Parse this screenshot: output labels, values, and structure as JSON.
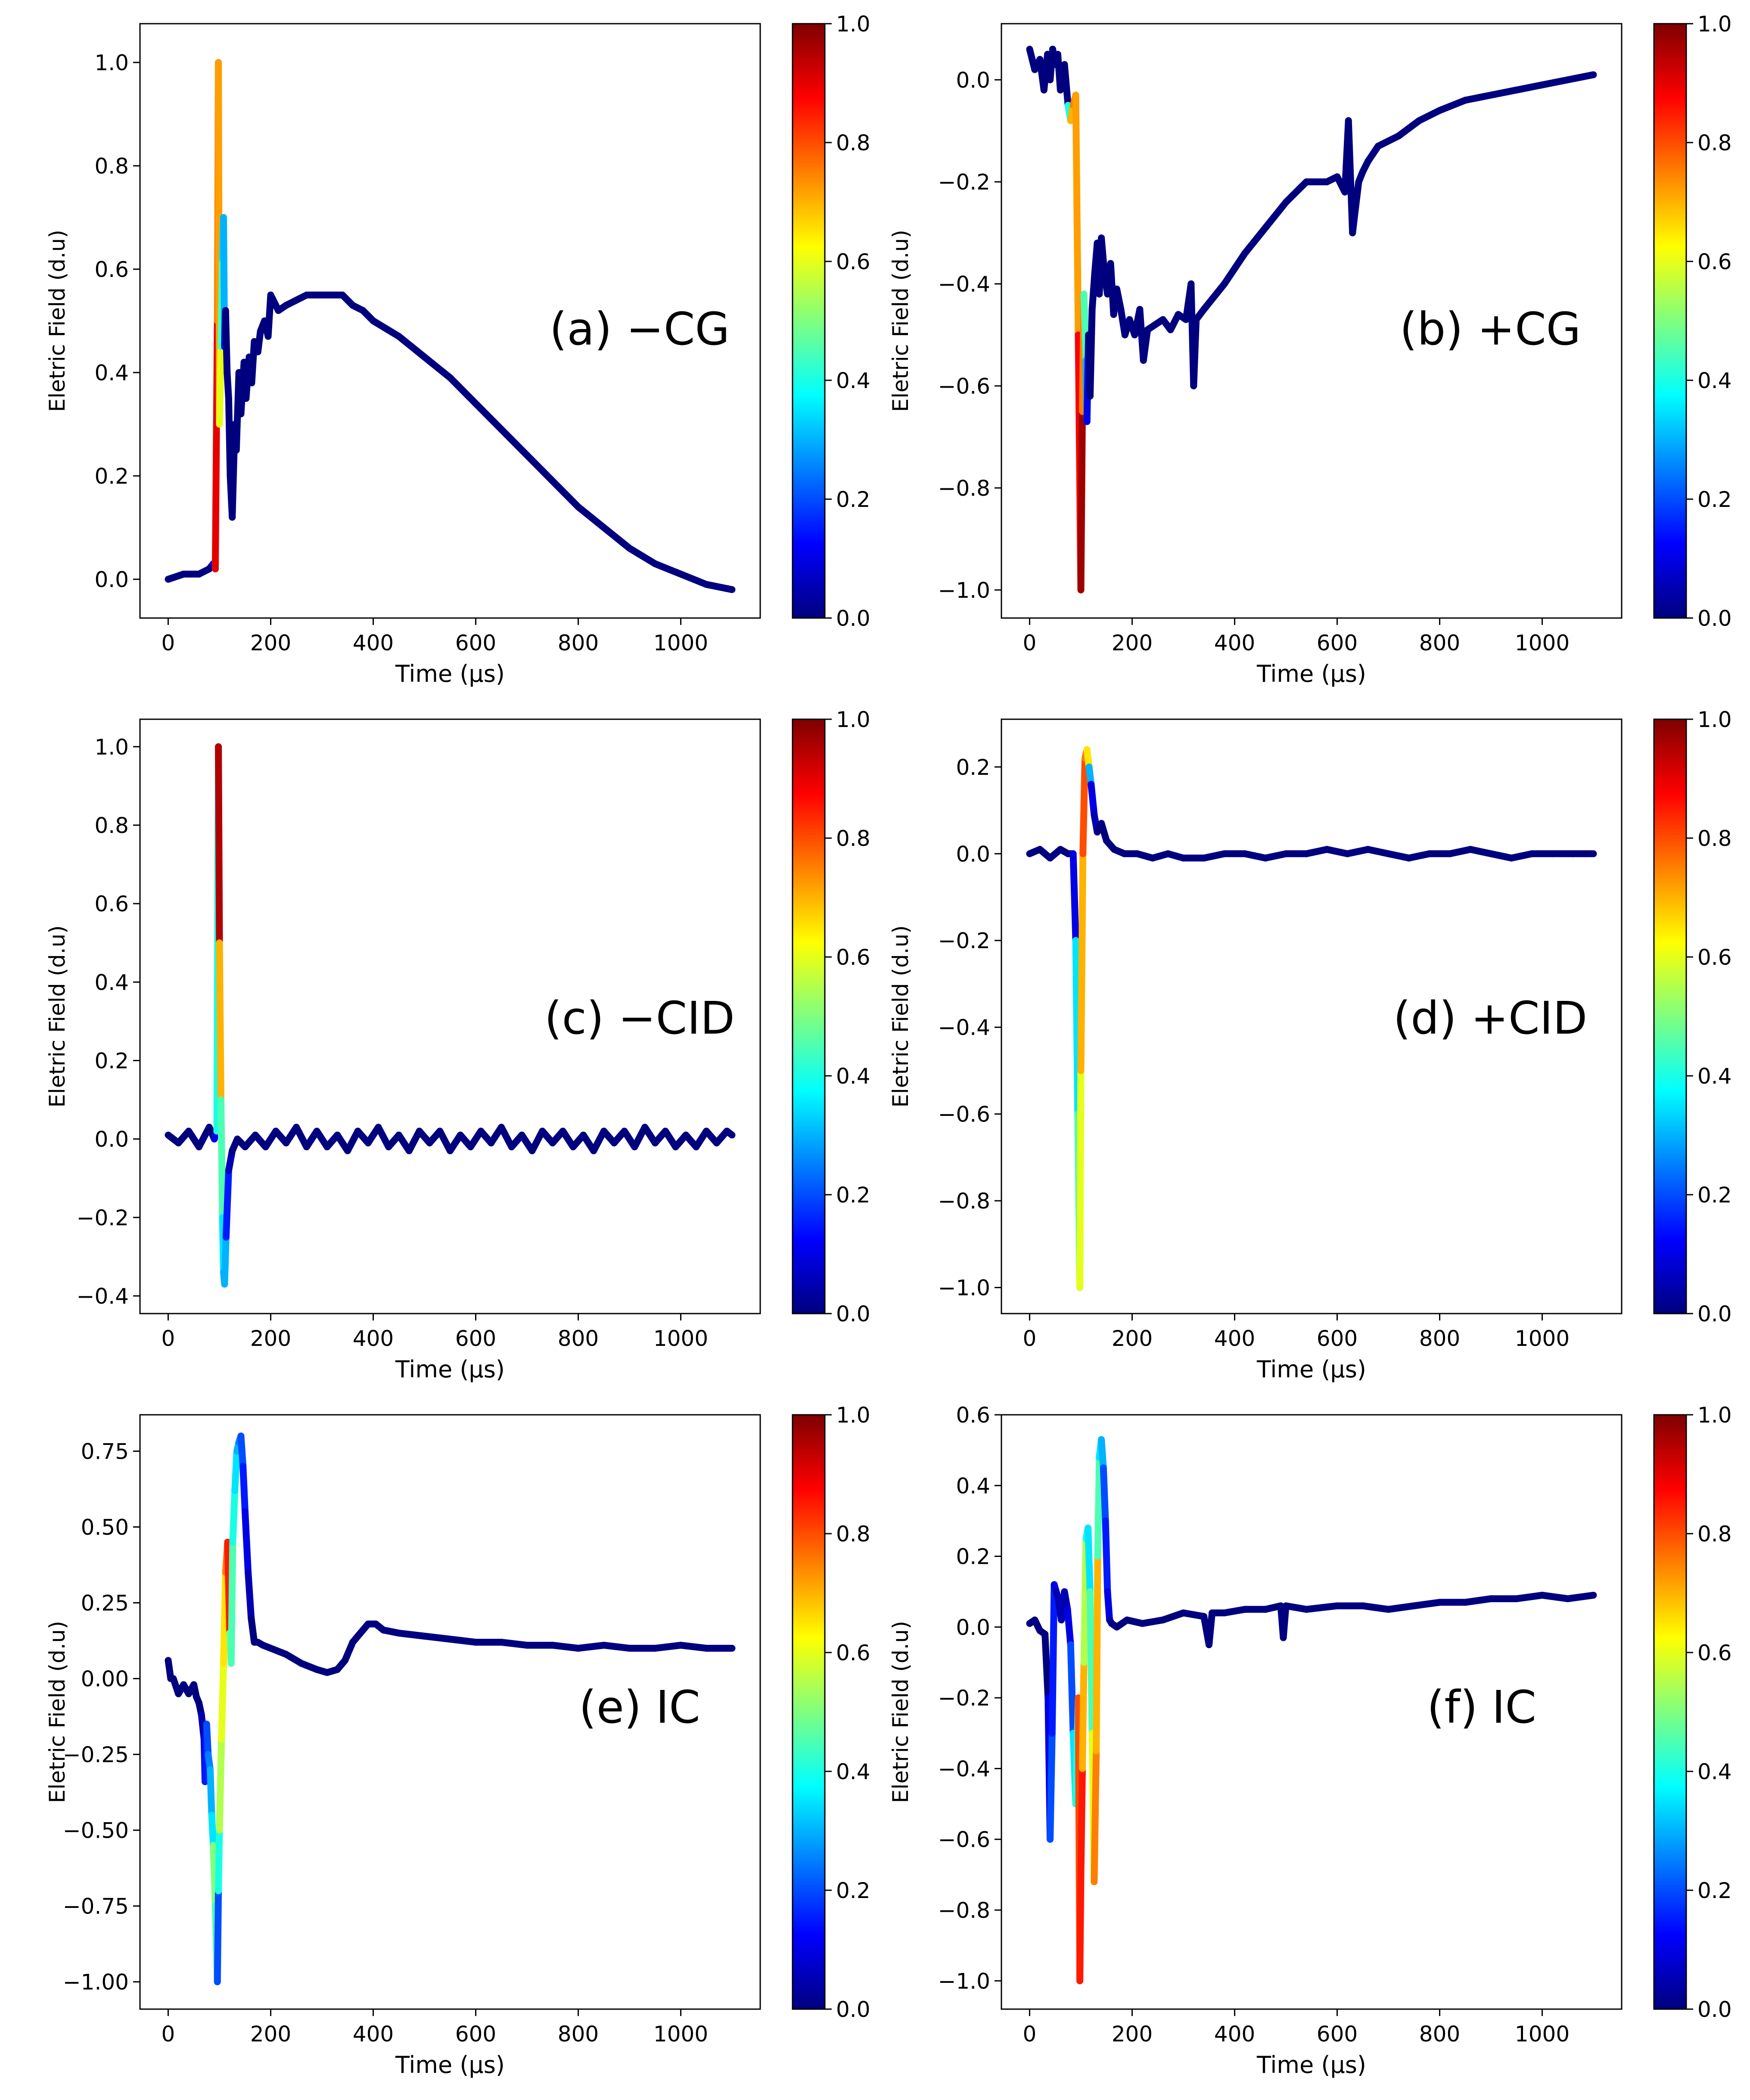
{
  "figure": {
    "colorbar_ticks": [
      "0.0",
      "0.2",
      "0.4",
      "0.6",
      "0.8",
      "1.0"
    ],
    "colormap": [
      "#00007f",
      "#0000ff",
      "#007fff",
      "#00ffff",
      "#7fff7f",
      "#ffff00",
      "#ff7f00",
      "#ff0000",
      "#7f0000"
    ]
  },
  "chart_data": [
    {
      "type": "line",
      "label": "(a) −CG",
      "xlabel": "Time (μs)",
      "ylabel": "Eletric Field (d.u)",
      "xlim": [
        -55,
        1155
      ],
      "ylim": [
        -0.075,
        1.075
      ],
      "xticks": [
        0,
        200,
        400,
        600,
        800,
        1000
      ],
      "yticks": [
        0.0,
        0.2,
        0.4,
        0.6,
        0.8,
        1.0
      ],
      "yticklabels": [
        "0.0",
        "0.2",
        "0.4",
        "0.6",
        "0.8",
        "1.0"
      ],
      "x": [
        0,
        30,
        60,
        80,
        88,
        92,
        96,
        98,
        100,
        103,
        106,
        108,
        110,
        112,
        115,
        118,
        121,
        125,
        130,
        133,
        138,
        142,
        148,
        152,
        158,
        163,
        168,
        175,
        180,
        188,
        195,
        200,
        215,
        230,
        250,
        270,
        300,
        320,
        340,
        360,
        380,
        400,
        450,
        500,
        550,
        600,
        650,
        700,
        750,
        800,
        850,
        900,
        950,
        1000,
        1050,
        1100
      ],
      "y": [
        0.0,
        0.01,
        0.01,
        0.02,
        0.03,
        0.02,
        0.5,
        1.0,
        0.3,
        0.45,
        0.62,
        0.7,
        0.45,
        0.52,
        0.4,
        0.35,
        0.2,
        0.12,
        0.3,
        0.25,
        0.4,
        0.32,
        0.42,
        0.35,
        0.43,
        0.38,
        0.46,
        0.44,
        0.48,
        0.5,
        0.47,
        0.55,
        0.52,
        0.53,
        0.54,
        0.55,
        0.55,
        0.55,
        0.55,
        0.53,
        0.52,
        0.5,
        0.47,
        0.43,
        0.39,
        0.34,
        0.29,
        0.24,
        0.19,
        0.14,
        0.1,
        0.06,
        0.03,
        0.01,
        -0.01,
        -0.02
      ],
      "c": [
        0,
        0,
        0,
        0,
        0.1,
        0.9,
        0.75,
        0.72,
        0.6,
        0.45,
        0.35,
        0.3,
        0.1,
        0,
        0,
        0,
        0,
        0,
        0,
        0,
        0,
        0,
        0,
        0,
        0,
        0,
        0,
        0,
        0,
        0,
        0,
        0,
        0,
        0,
        0,
        0,
        0,
        0,
        0,
        0,
        0,
        0,
        0,
        0,
        0,
        0,
        0,
        0,
        0,
        0,
        0,
        0,
        0,
        0,
        0,
        0
      ]
    },
    {
      "type": "line",
      "label": "(b) +CG",
      "xlabel": "Time (μs)",
      "ylabel": "Eletric Field (d.u)",
      "xlim": [
        -55,
        1155
      ],
      "ylim": [
        -1.055,
        0.11
      ],
      "xticks": [
        0,
        200,
        400,
        600,
        800,
        1000
      ],
      "yticks": [
        -1.0,
        -0.8,
        -0.6,
        -0.4,
        -0.2,
        0.0
      ],
      "yticklabels": [
        "−1.0",
        "−0.8",
        "−0.6",
        "−0.4",
        "−0.2",
        "0.0"
      ],
      "x": [
        0,
        10,
        20,
        28,
        35,
        40,
        45,
        50,
        55,
        60,
        68,
        75,
        80,
        85,
        90,
        95,
        100,
        103,
        106,
        110,
        112,
        115,
        118,
        122,
        127,
        132,
        136,
        140,
        146,
        152,
        158,
        164,
        170,
        178,
        186,
        195,
        205,
        215,
        222,
        230,
        245,
        260,
        275,
        290,
        305,
        315,
        320,
        325,
        340,
        380,
        420,
        460,
        500,
        540,
        580,
        600,
        615,
        622,
        630,
        636,
        642,
        650,
        660,
        680,
        720,
        760,
        800,
        850,
        900,
        950,
        1000,
        1050,
        1100
      ],
      "y": [
        0.06,
        0.02,
        0.04,
        -0.02,
        0.05,
        0.0,
        0.06,
        0.03,
        0.05,
        -0.02,
        0.03,
        -0.05,
        -0.08,
        -0.05,
        -0.03,
        -0.5,
        -1.0,
        -0.65,
        -0.42,
        -0.55,
        -0.67,
        -0.5,
        -0.62,
        -0.45,
        -0.38,
        -0.32,
        -0.42,
        -0.31,
        -0.38,
        -0.42,
        -0.36,
        -0.46,
        -0.41,
        -0.45,
        -0.5,
        -0.47,
        -0.5,
        -0.45,
        -0.55,
        -0.49,
        -0.48,
        -0.47,
        -0.49,
        -0.46,
        -0.47,
        -0.4,
        -0.6,
        -0.47,
        -0.45,
        -0.4,
        -0.34,
        -0.29,
        -0.24,
        -0.2,
        -0.2,
        -0.19,
        -0.22,
        -0.08,
        -0.3,
        -0.25,
        -0.2,
        -0.18,
        -0.16,
        -0.13,
        -0.11,
        -0.08,
        -0.06,
        -0.04,
        -0.03,
        -0.02,
        -0.01,
        0.0,
        0.01
      ],
      "c": [
        0,
        0,
        0,
        0,
        0,
        0,
        0,
        0,
        0,
        0,
        0,
        0.4,
        0.7,
        0.75,
        0.72,
        0.88,
        0.97,
        0.75,
        0.45,
        0.3,
        0.1,
        0,
        0,
        0,
        0,
        0,
        0,
        0,
        0,
        0,
        0,
        0,
        0,
        0,
        0,
        0,
        0,
        0,
        0,
        0,
        0,
        0,
        0,
        0,
        0,
        0,
        0,
        0,
        0,
        0,
        0,
        0,
        0,
        0,
        0,
        0,
        0,
        0,
        0,
        0,
        0,
        0,
        0,
        0,
        0,
        0,
        0,
        0,
        0,
        0,
        0,
        0,
        0
      ]
    },
    {
      "type": "line",
      "label": "(c) −CID",
      "xlabel": "Time (μs)",
      "ylabel": "Eletric Field (d.u)",
      "xlim": [
        -55,
        1155
      ],
      "ylim": [
        -0.445,
        1.07
      ],
      "xticks": [
        0,
        200,
        400,
        600,
        800,
        1000
      ],
      "yticks": [
        -0.4,
        -0.2,
        0.0,
        0.2,
        0.4,
        0.6,
        0.8,
        1.0
      ],
      "yticklabels": [
        "−0.4",
        "−0.2",
        "0.0",
        "0.2",
        "0.4",
        "0.6",
        "0.8",
        "1.0"
      ],
      "x": [
        0,
        20,
        40,
        60,
        80,
        90,
        95,
        98,
        100,
        103,
        106,
        108,
        110,
        113,
        118,
        125,
        135,
        150,
        170,
        190,
        210,
        230,
        250,
        270,
        290,
        310,
        330,
        350,
        370,
        390,
        410,
        430,
        450,
        470,
        490,
        510,
        530,
        550,
        570,
        590,
        610,
        630,
        650,
        670,
        690,
        710,
        730,
        750,
        770,
        790,
        810,
        830,
        850,
        870,
        890,
        910,
        930,
        950,
        970,
        990,
        1010,
        1030,
        1050,
        1070,
        1090,
        1100
      ],
      "y": [
        0.01,
        -0.01,
        0.02,
        -0.02,
        0.03,
        0.0,
        0.02,
        1.0,
        0.5,
        0.1,
        -0.2,
        -0.34,
        -0.37,
        -0.25,
        -0.08,
        -0.03,
        0.0,
        -0.02,
        0.01,
        -0.02,
        0.02,
        -0.01,
        0.03,
        -0.02,
        0.02,
        -0.02,
        0.01,
        -0.03,
        0.02,
        -0.01,
        0.03,
        -0.02,
        0.01,
        -0.03,
        0.02,
        -0.01,
        0.02,
        -0.03,
        0.01,
        -0.02,
        0.02,
        -0.01,
        0.03,
        -0.02,
        0.01,
        -0.03,
        0.02,
        -0.01,
        0.02,
        -0.02,
        0.01,
        -0.03,
        0.02,
        -0.01,
        0.02,
        -0.02,
        0.03,
        -0.01,
        0.02,
        -0.02,
        0.01,
        -0.02,
        0.02,
        -0.01,
        0.02,
        0.01
      ],
      "c": [
        0,
        0,
        0,
        0,
        0,
        0.1,
        0.4,
        0.95,
        0.7,
        0.45,
        0.35,
        0.3,
        0.3,
        0.15,
        0.05,
        0,
        0,
        0,
        0,
        0,
        0,
        0,
        0,
        0,
        0,
        0,
        0,
        0,
        0,
        0,
        0,
        0,
        0,
        0,
        0,
        0,
        0,
        0,
        0,
        0,
        0,
        0,
        0,
        0,
        0,
        0,
        0,
        0,
        0,
        0,
        0,
        0,
        0,
        0,
        0,
        0,
        0,
        0,
        0,
        0,
        0,
        0,
        0,
        0,
        0,
        0
      ]
    },
    {
      "type": "line",
      "label": "(d) +CID",
      "xlabel": "Time (μs)",
      "ylabel": "Eletric Field (d.u)",
      "xlim": [
        -55,
        1155
      ],
      "ylim": [
        -1.06,
        0.31
      ],
      "xticks": [
        0,
        200,
        400,
        600,
        800,
        1000
      ],
      "yticks": [
        -1.0,
        -0.8,
        -0.6,
        -0.4,
        -0.2,
        0.0,
        0.2
      ],
      "yticklabels": [
        "−1.0",
        "−0.8",
        "−0.6",
        "−0.4",
        "−0.2",
        "0.0",
        "0.2"
      ],
      "x": [
        0,
        20,
        40,
        60,
        75,
        85,
        90,
        94,
        98,
        100,
        104,
        108,
        112,
        116,
        120,
        126,
        132,
        140,
        150,
        165,
        185,
        210,
        240,
        270,
        300,
        340,
        380,
        420,
        460,
        500,
        540,
        580,
        620,
        660,
        700,
        740,
        780,
        820,
        860,
        900,
        940,
        980,
        1020,
        1060,
        1100
      ],
      "y": [
        0.0,
        0.01,
        -0.01,
        0.01,
        0.0,
        0.0,
        -0.2,
        -0.6,
        -1.0,
        -0.5,
        0.0,
        0.22,
        0.24,
        0.2,
        0.16,
        0.09,
        0.05,
        0.07,
        0.03,
        0.01,
        0.0,
        0.0,
        -0.01,
        0.0,
        -0.01,
        -0.01,
        0.0,
        0.0,
        -0.01,
        0.0,
        0.0,
        0.01,
        0.0,
        0.01,
        0.0,
        -0.01,
        0.0,
        0.0,
        0.01,
        0.0,
        -0.01,
        0.0,
        0.0,
        0.0,
        0.0
      ],
      "c": [
        0,
        0,
        0,
        0,
        0,
        0.1,
        0.35,
        0.45,
        0.6,
        0.7,
        0.8,
        0.75,
        0.65,
        0.3,
        0.1,
        0.05,
        0,
        0,
        0,
        0,
        0,
        0,
        0,
        0,
        0,
        0,
        0,
        0,
        0,
        0,
        0,
        0,
        0,
        0,
        0,
        0,
        0,
        0,
        0,
        0,
        0,
        0,
        0,
        0,
        0
      ]
    },
    {
      "type": "line",
      "label": "(e) IC",
      "xlabel": "Time (μs)",
      "ylabel": "Eletric Field (d.u)",
      "xlim": [
        -55,
        1155
      ],
      "ylim": [
        -1.09,
        0.87
      ],
      "xticks": [
        0,
        200,
        400,
        600,
        800,
        1000
      ],
      "yticks": [
        -1.0,
        -0.75,
        -0.5,
        -0.25,
        0.0,
        0.25,
        0.5,
        0.75
      ],
      "yticklabels": [
        "−1.00",
        "−0.75",
        "−0.50",
        "−0.25",
        "0.00",
        "0.25",
        "0.50",
        "0.75"
      ],
      "x": [
        0,
        5,
        10,
        20,
        30,
        40,
        50,
        55,
        60,
        65,
        70,
        72,
        75,
        78,
        82,
        85,
        88,
        92,
        96,
        98,
        100,
        104,
        108,
        112,
        116,
        120,
        123,
        126,
        130,
        134,
        138,
        142,
        146,
        150,
        156,
        162,
        168,
        175,
        185,
        200,
        230,
        260,
        290,
        310,
        330,
        345,
        360,
        375,
        390,
        405,
        420,
        450,
        500,
        550,
        600,
        650,
        700,
        750,
        800,
        850,
        900,
        950,
        1000,
        1050,
        1100
      ],
      "y": [
        0.06,
        0.0,
        0.0,
        -0.05,
        -0.02,
        -0.05,
        -0.02,
        -0.06,
        -0.08,
        -0.12,
        -0.2,
        -0.34,
        -0.15,
        -0.25,
        -0.3,
        -0.45,
        -0.55,
        -0.75,
        -1.0,
        -0.7,
        -0.5,
        -0.2,
        0.05,
        0.35,
        0.45,
        0.15,
        0.05,
        0.45,
        0.62,
        0.75,
        0.78,
        0.8,
        0.7,
        0.55,
        0.35,
        0.2,
        0.12,
        0.12,
        0.11,
        0.1,
        0.08,
        0.05,
        0.03,
        0.02,
        0.03,
        0.06,
        0.12,
        0.15,
        0.18,
        0.18,
        0.16,
        0.15,
        0.14,
        0.13,
        0.12,
        0.12,
        0.11,
        0.11,
        0.1,
        0.11,
        0.1,
        0.1,
        0.11,
        0.1,
        0.1
      ],
      "c": [
        0,
        0,
        0,
        0,
        0,
        0,
        0,
        0,
        0,
        0.05,
        0.1,
        0.15,
        0.2,
        0.25,
        0.3,
        0.35,
        0.5,
        0.45,
        0.2,
        0.4,
        0.55,
        0.6,
        0.65,
        0.75,
        0.85,
        0.5,
        0.45,
        0.4,
        0.35,
        0.3,
        0.25,
        0.2,
        0.15,
        0.1,
        0.05,
        0,
        0,
        0,
        0,
        0,
        0,
        0,
        0,
        0,
        0,
        0,
        0,
        0,
        0,
        0,
        0,
        0,
        0,
        0,
        0,
        0,
        0,
        0,
        0,
        0,
        0,
        0,
        0,
        0,
        0
      ]
    },
    {
      "type": "line",
      "label": "(f) IC",
      "xlabel": "Time (μs)",
      "ylabel": "Eletric Field (d.u)",
      "xlim": [
        -55,
        1155
      ],
      "ylim": [
        -1.08,
        0.6
      ],
      "xticks": [
        0,
        200,
        400,
        600,
        800,
        1000
      ],
      "yticks": [
        -1.0,
        -0.8,
        -0.6,
        -0.4,
        -0.2,
        0.0,
        0.2,
        0.4,
        0.6
      ],
      "yticklabels": [
        "−1.0",
        "−0.8",
        "−0.6",
        "−0.4",
        "−0.2",
        "0.0",
        "0.2",
        "0.4",
        "0.6"
      ],
      "x": [
        0,
        10,
        20,
        30,
        36,
        40,
        44,
        48,
        52,
        56,
        62,
        68,
        74,
        80,
        85,
        90,
        95,
        98,
        100,
        103,
        106,
        110,
        114,
        118,
        122,
        126,
        130,
        133,
        136,
        140,
        144,
        148,
        152,
        156,
        160,
        170,
        190,
        220,
        260,
        300,
        340,
        350,
        356,
        380,
        420,
        460,
        490,
        495,
        500,
        540,
        600,
        650,
        700,
        750,
        800,
        850,
        900,
        950,
        1000,
        1050,
        1100
      ],
      "y": [
        0.01,
        0.02,
        -0.01,
        -0.02,
        -0.2,
        -0.6,
        -0.3,
        0.12,
        0.1,
        0.08,
        0.02,
        0.1,
        0.05,
        -0.05,
        -0.3,
        -0.5,
        -0.2,
        -1.0,
        -0.7,
        -0.4,
        -0.1,
        0.25,
        0.28,
        0.1,
        -0.3,
        -0.72,
        -0.35,
        0.2,
        0.48,
        0.53,
        0.45,
        0.3,
        0.1,
        0.02,
        0.01,
        0.0,
        0.02,
        0.01,
        0.02,
        0.04,
        0.03,
        -0.05,
        0.04,
        0.04,
        0.05,
        0.05,
        0.06,
        -0.03,
        0.06,
        0.05,
        0.06,
        0.06,
        0.05,
        0.06,
        0.07,
        0.07,
        0.08,
        0.08,
        0.09,
        0.08,
        0.09
      ],
      "c": [
        0,
        0,
        0,
        0,
        0.1,
        0.2,
        0.15,
        0.1,
        0.05,
        0.05,
        0.05,
        0.05,
        0.1,
        0.2,
        0.35,
        0.4,
        0.8,
        0.85,
        0.85,
        0.7,
        0.55,
        0.4,
        0.35,
        0.45,
        0.6,
        0.75,
        0.7,
        0.45,
        0.35,
        0.3,
        0.2,
        0.15,
        0.1,
        0.05,
        0,
        0,
        0,
        0,
        0,
        0,
        0,
        0,
        0,
        0,
        0,
        0,
        0,
        0,
        0,
        0,
        0,
        0,
        0,
        0,
        0,
        0,
        0,
        0,
        0,
        0,
        0
      ]
    }
  ]
}
